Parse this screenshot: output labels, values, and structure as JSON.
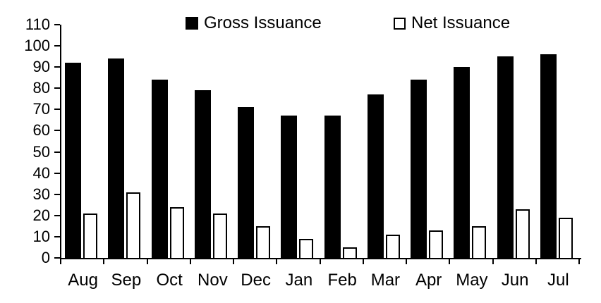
{
  "chart_data": {
    "type": "bar",
    "title": "",
    "xlabel": "",
    "ylabel": "",
    "categories": [
      "Aug",
      "Sep",
      "Oct",
      "Nov",
      "Dec",
      "Jan",
      "Feb",
      "Mar",
      "Apr",
      "May",
      "Jun",
      "Jul"
    ],
    "series": [
      {
        "name": "Gross Issuance",
        "values": [
          92,
          94,
          84,
          79,
          71,
          67,
          67,
          77,
          84,
          90,
          95,
          96
        ],
        "fill": "#000000",
        "style": "filled"
      },
      {
        "name": "Net Issuance",
        "values": [
          21,
          31,
          24,
          21,
          15,
          9,
          5,
          11,
          13,
          15,
          23,
          19
        ],
        "fill": "#ffffff",
        "stroke": "#000000",
        "style": "outline"
      }
    ],
    "ylim": [
      0,
      110
    ],
    "ytick_step": 10,
    "yticks": [
      0,
      10,
      20,
      30,
      40,
      50,
      60,
      70,
      80,
      90,
      100,
      110
    ],
    "grid": false,
    "legend_position": "top"
  },
  "colors": {
    "background": "#ffffff",
    "axis": "#000000",
    "text": "#000000",
    "gross_bar": "#000000",
    "net_bar_fill": "#ffffff",
    "net_bar_stroke": "#000000"
  }
}
